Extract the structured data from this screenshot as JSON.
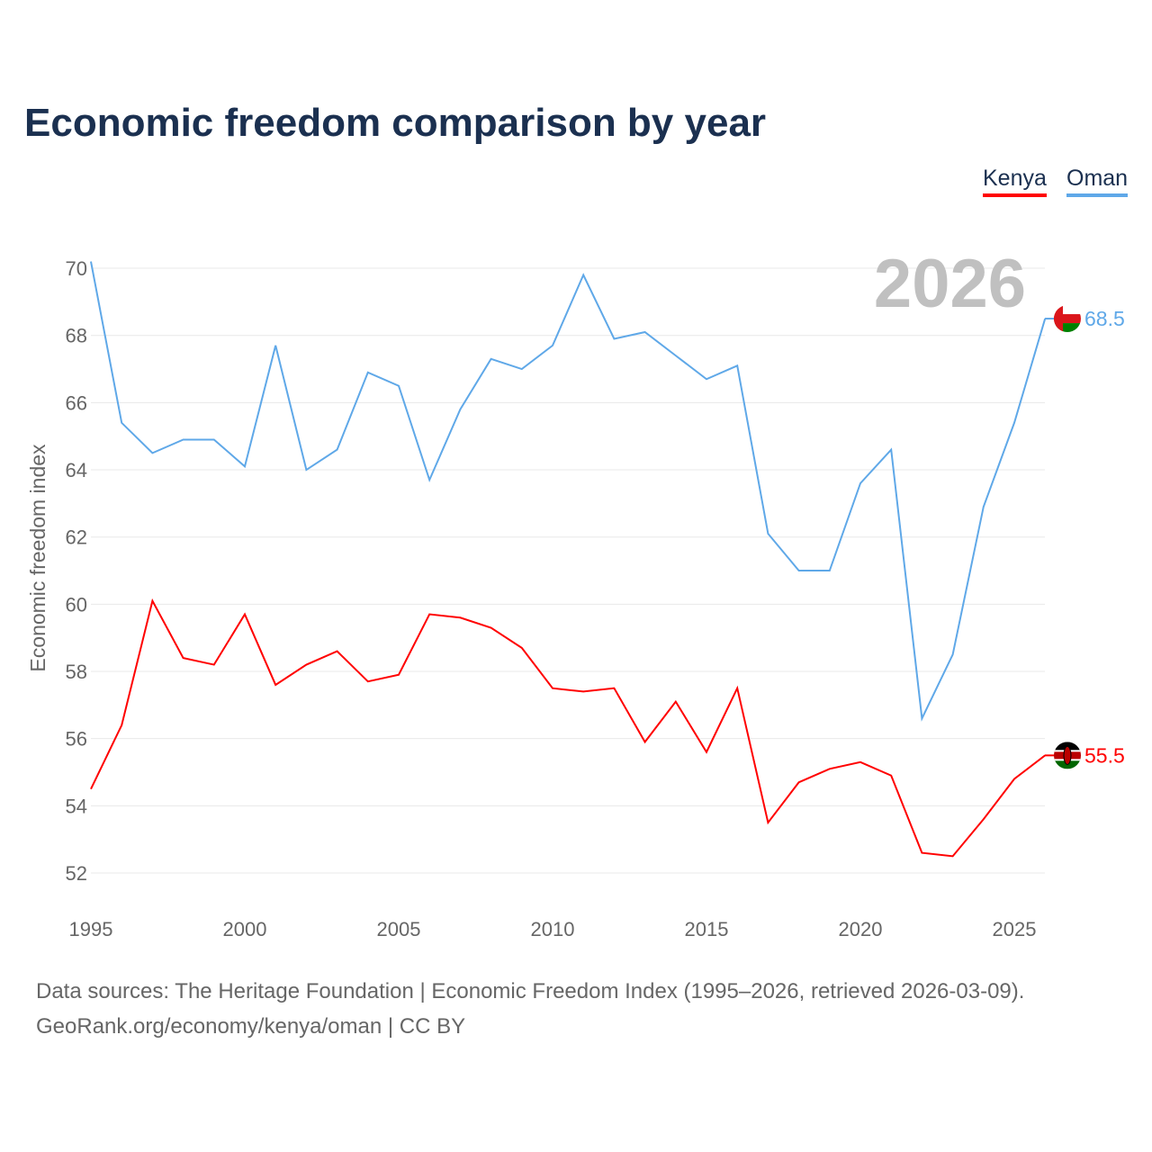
{
  "chart_data": {
    "type": "line",
    "title": "Economic freedom comparison by year",
    "xlabel": "",
    "ylabel": "Economic freedom index",
    "xlim": [
      1995,
      2026
    ],
    "ylim": [
      51,
      71
    ],
    "yticks": [
      52,
      54,
      56,
      58,
      60,
      62,
      64,
      66,
      68,
      70
    ],
    "xticks": [
      1995,
      2000,
      2005,
      2010,
      2015,
      2020,
      2025
    ],
    "grid": true,
    "legend_position": "top-right",
    "year_label": "2026",
    "x": [
      1995,
      1996,
      1997,
      1998,
      1999,
      2000,
      2001,
      2002,
      2003,
      2004,
      2005,
      2006,
      2007,
      2008,
      2009,
      2010,
      2011,
      2012,
      2013,
      2014,
      2015,
      2016,
      2017,
      2018,
      2019,
      2020,
      2021,
      2022,
      2023,
      2024,
      2025,
      2026
    ],
    "series": [
      {
        "name": "Kenya",
        "color": "#ff0000",
        "end_label": "55.5",
        "values": [
          54.5,
          56.4,
          60.1,
          58.4,
          58.2,
          59.7,
          57.6,
          58.2,
          58.6,
          57.7,
          57.9,
          59.7,
          59.6,
          59.3,
          58.7,
          57.5,
          57.4,
          57.5,
          55.9,
          57.1,
          55.6,
          57.5,
          53.5,
          54.7,
          55.1,
          55.3,
          54.9,
          52.6,
          52.5,
          53.6,
          54.8,
          55.5
        ]
      },
      {
        "name": "Oman",
        "color": "#5fa8e8",
        "end_label": "68.5",
        "values": [
          70.2,
          65.4,
          64.5,
          64.9,
          64.9,
          64.1,
          67.7,
          64.0,
          64.6,
          66.9,
          66.5,
          63.7,
          65.8,
          67.3,
          67.0,
          67.7,
          69.8,
          67.9,
          68.1,
          67.4,
          66.7,
          67.1,
          62.1,
          61.0,
          61.0,
          63.6,
          64.6,
          56.6,
          58.5,
          62.9,
          65.4,
          68.5
        ]
      }
    ]
  },
  "footer": {
    "line1": "Data sources: The Heritage Foundation | Economic Freedom Index (1995–2026, retrieved 2026-03-09).",
    "line2": "GeoRank.org/economy/kenya/oman | CC BY"
  }
}
